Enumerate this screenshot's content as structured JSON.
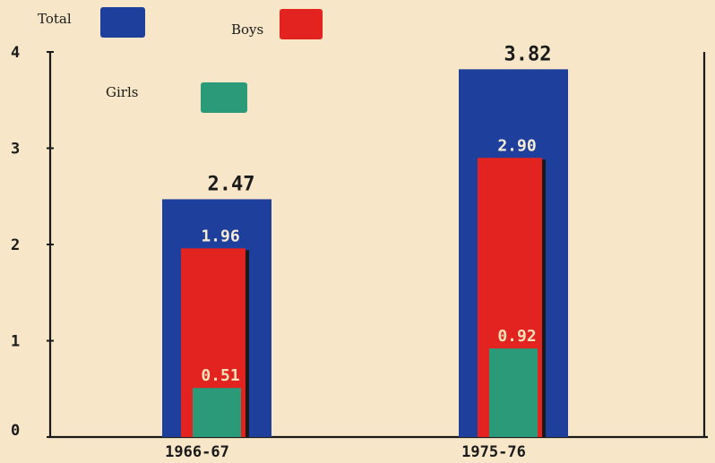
{
  "chart_data": {
    "type": "bar",
    "categories": [
      "1966-67",
      "1975-76"
    ],
    "series": [
      {
        "name": "Total",
        "values": [
          2.47,
          3.82
        ],
        "color": "#1f3f9c"
      },
      {
        "name": "Boys",
        "values": [
          1.96,
          2.9
        ],
        "color": "#e3231f"
      },
      {
        "name": "Girls",
        "values": [
          0.51,
          0.92
        ],
        "color": "#2a9a78"
      }
    ],
    "value_labels": [
      [
        "2.47",
        "1.96",
        "0.51"
      ],
      [
        "3.82",
        "2.90",
        "0.92"
      ]
    ],
    "yticks": [
      "0",
      "1",
      "2",
      "3",
      "4"
    ],
    "ylim": [
      0,
      4
    ],
    "bar_layout": "nested",
    "legend_placement": "top-left",
    "grid": false,
    "title": "",
    "xlabel": "",
    "ylabel": ""
  }
}
